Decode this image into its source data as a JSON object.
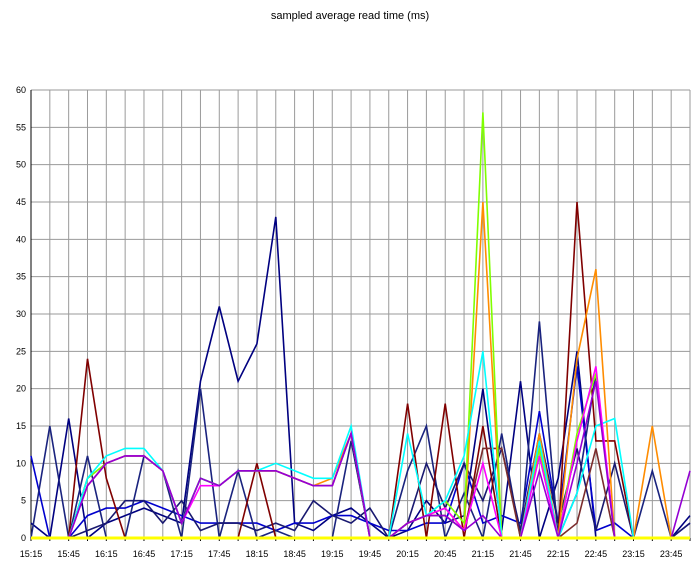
{
  "chart_data": {
    "type": "line",
    "title": "sampled average read time (ms)",
    "xlabel": "",
    "ylabel": "",
    "ylim": [
      0,
      60
    ],
    "yticks": [
      0,
      5,
      10,
      15,
      20,
      25,
      30,
      35,
      40,
      45,
      50,
      55,
      60
    ],
    "grid": true,
    "legend": "none",
    "x": [
      "15:15",
      "15:30",
      "15:45",
      "16:00",
      "16:15",
      "16:30",
      "16:45",
      "17:00",
      "17:15",
      "17:30",
      "17:45",
      "18:00",
      "18:15",
      "18:30",
      "18:45",
      "19:00",
      "19:15",
      "19:30",
      "19:45",
      "20:00",
      "20:15",
      "20:30",
      "20:45",
      "21:00",
      "21:15",
      "21:30",
      "21:45",
      "22:00",
      "22:15",
      "22:30",
      "22:45",
      "23:00",
      "23:15",
      "23:30",
      "23:45",
      "24:00"
    ],
    "xtick_labels": [
      "15:15",
      "15:45",
      "16:15",
      "16:45",
      "17:15",
      "17:45",
      "18:15",
      "18:45",
      "19:15",
      "19:45",
      "20:15",
      "20:45",
      "21:15",
      "21:45",
      "22:15",
      "22:45",
      "23:15",
      "23:45"
    ],
    "series": [
      {
        "color": "#000080",
        "values": [
          2,
          0,
          16,
          0,
          2,
          3,
          4,
          3,
          2,
          21,
          31,
          21,
          26,
          43,
          2,
          1,
          3,
          4,
          2,
          0,
          1,
          5,
          2,
          3,
          20,
          1,
          21,
          0,
          8,
          25,
          0,
          0,
          0,
          0,
          0,
          3
        ]
      },
      {
        "color": "#0000cd",
        "values": [
          11,
          0,
          0,
          3,
          4,
          4,
          5,
          4,
          3,
          2,
          2,
          2,
          2,
          1,
          2,
          2,
          3,
          3,
          2,
          1,
          1,
          2,
          2,
          10,
          2,
          3,
          2,
          17,
          2,
          23,
          1,
          2,
          0,
          0,
          0,
          2
        ]
      },
      {
        "color": "#1a237e",
        "values": [
          0,
          15,
          0,
          11,
          0,
          0,
          11,
          9,
          0,
          20,
          0,
          9,
          0,
          1,
          0,
          0,
          0,
          13,
          0,
          0,
          9,
          15,
          0,
          6,
          0,
          14,
          0,
          29,
          0,
          6,
          22,
          0,
          0,
          9,
          0,
          0
        ]
      },
      {
        "color": "#191970",
        "values": [
          0,
          0,
          0,
          1,
          2,
          5,
          5,
          2,
          5,
          1,
          2,
          2,
          1,
          2,
          1,
          5,
          3,
          2,
          4,
          0,
          2,
          10,
          4,
          10,
          5,
          12,
          1,
          14,
          2,
          12,
          1,
          10,
          0,
          0,
          0,
          2
        ]
      },
      {
        "color": "#800000",
        "values": [
          0,
          0,
          0,
          24,
          8,
          0,
          0,
          0,
          0,
          0,
          0,
          0,
          10,
          0,
          0,
          0,
          0,
          0,
          0,
          0,
          18,
          0,
          18,
          0,
          15,
          0,
          0,
          0,
          0,
          45,
          13,
          13,
          0,
          0,
          0,
          0
        ]
      },
      {
        "color": "#7b2d2d",
        "values": [
          0,
          0,
          0,
          8,
          10,
          11,
          11,
          9,
          2,
          8,
          7,
          9,
          9,
          9,
          8,
          7,
          7,
          14,
          0,
          0,
          2,
          3,
          3,
          1,
          12,
          12,
          0,
          13,
          0,
          2,
          12,
          0,
          0,
          0,
          0,
          0
        ]
      },
      {
        "color": "#ff8c00",
        "values": [
          0,
          0,
          0,
          7,
          10,
          11,
          11,
          9,
          2,
          8,
          7,
          9,
          9,
          9,
          8,
          7,
          8,
          14,
          0,
          0,
          2,
          3,
          4,
          1,
          45,
          0,
          0,
          14,
          0,
          24,
          36,
          0,
          0,
          15,
          0,
          0
        ]
      },
      {
        "color": "#7fff00",
        "values": [
          0,
          0,
          0,
          8,
          10,
          11,
          11,
          9,
          2,
          8,
          7,
          9,
          9,
          9,
          8,
          7,
          7,
          14,
          0,
          0,
          2,
          3,
          5,
          2,
          57,
          0,
          0,
          12,
          0,
          14,
          22,
          0,
          0,
          0,
          0,
          0
        ]
      },
      {
        "color": "#00ffff",
        "values": [
          0,
          0,
          0,
          8,
          11,
          12,
          12,
          9,
          2,
          8,
          7,
          9,
          9,
          10,
          9,
          8,
          8,
          15,
          0,
          0,
          14,
          3,
          5,
          11,
          25,
          0,
          0,
          13,
          0,
          6,
          15,
          16,
          0,
          0,
          0,
          0
        ]
      },
      {
        "color": "#ff00ff",
        "values": [
          0,
          0,
          0,
          7,
          10,
          11,
          11,
          9,
          2,
          7,
          7,
          9,
          9,
          9,
          8,
          7,
          7,
          14,
          0,
          0,
          2,
          3,
          4,
          1,
          10,
          0,
          0,
          11,
          0,
          13,
          23,
          0,
          0,
          0,
          0,
          0
        ]
      },
      {
        "color": "#9400d3",
        "values": [
          0,
          0,
          0,
          7,
          10,
          11,
          11,
          9,
          2,
          8,
          7,
          9,
          9,
          9,
          8,
          7,
          7,
          14,
          0,
          0,
          2,
          3,
          3,
          1,
          3,
          0,
          0,
          9,
          0,
          10,
          21,
          0,
          0,
          0,
          0,
          9
        ]
      },
      {
        "color": "#ffff00",
        "values": [
          0,
          0,
          0,
          0,
          0,
          0,
          0,
          0,
          0,
          0,
          0,
          0,
          0,
          0,
          0,
          0,
          0,
          0,
          0,
          0,
          0,
          0,
          0,
          0,
          0,
          0,
          0,
          0,
          0,
          0,
          0,
          0,
          0,
          0,
          0,
          0
        ]
      }
    ]
  }
}
